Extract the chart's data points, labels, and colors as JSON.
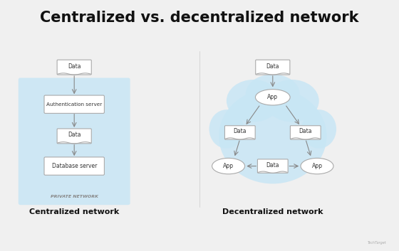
{
  "title": "Centralized vs. decentralized network",
  "title_fontsize": 15,
  "title_fontweight": "bold",
  "bg_color": "#f0f0f0",
  "panel_bg": "#ffffff",
  "cloud_color": "#c8e6f5",
  "box_color": "#ffffff",
  "box_edge": "#aaaaaa",
  "arrow_color": "#888888",
  "text_color": "#333333",
  "label_left": "Centralized network",
  "label_right": "Decentralized network",
  "private_network_label": "PRIVATE NETWORK",
  "font_size_nodes": 6,
  "font_size_labels": 8
}
